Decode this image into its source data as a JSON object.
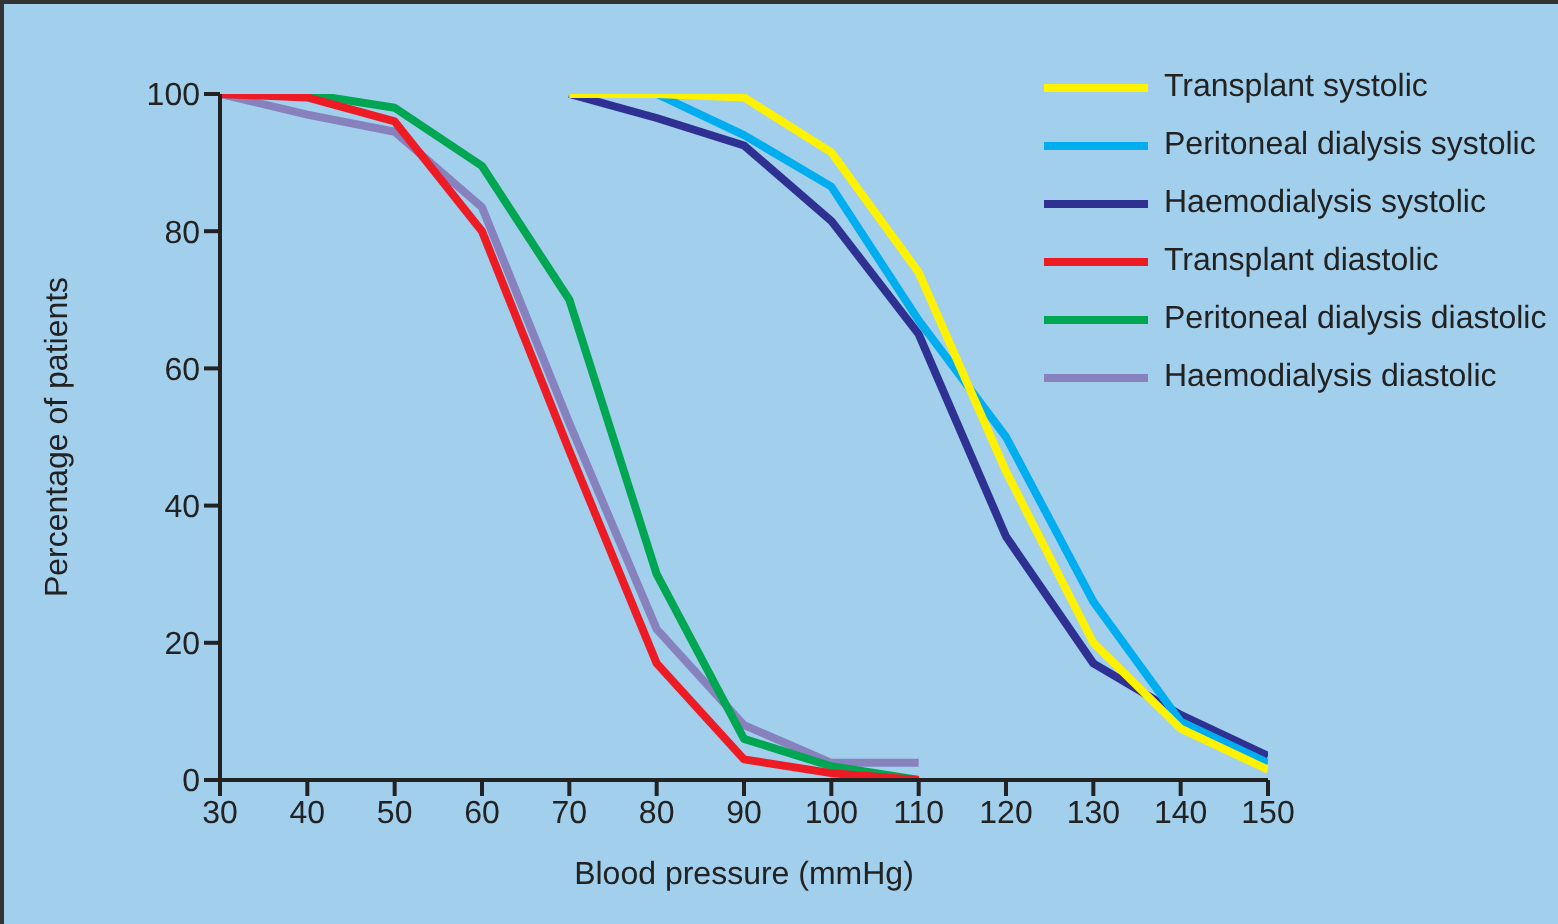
{
  "chart_data": {
    "type": "line",
    "xlabel": "Blood pressure (mmHg)",
    "ylabel": "Percentage of patients",
    "xlim": [
      30,
      150
    ],
    "xticks": [
      30,
      40,
      50,
      60,
      70,
      80,
      90,
      100,
      110,
      120,
      130,
      140,
      150
    ],
    "ylim": [
      0,
      100
    ],
    "yticks": [
      0,
      20,
      40,
      60,
      80,
      100
    ],
    "grid": false,
    "legend": "top right",
    "marker": "none",
    "line_style": "solid",
    "series": [
      {
        "name": "Transplant systolic",
        "color": "#fff200",
        "x": [
          70,
          80,
          90,
          100,
          110,
          120,
          130,
          140,
          150
        ],
        "values": [
          100,
          100,
          99.5,
          91.5,
          74,
          45,
          20,
          7.5,
          1.5
        ]
      },
      {
        "name": "Peritoneal dialysis systolic",
        "color": "#00aeef",
        "x": [
          70,
          80,
          90,
          100,
          110,
          120,
          130,
          140,
          150
        ],
        "values": [
          100,
          100,
          94,
          86.5,
          67,
          50,
          26,
          8.5,
          2.5
        ]
      },
      {
        "name": "Haemodialysis systolic",
        "color": "#2e3192",
        "x": [
          70,
          80,
          90,
          100,
          110,
          120,
          130,
          140,
          150
        ],
        "values": [
          100,
          96.5,
          92.5,
          81.5,
          65,
          35.5,
          17,
          9.5,
          3.5
        ]
      },
      {
        "name": "Transplant diastolic",
        "color": "#ed1c24",
        "x": [
          30,
          40,
          50,
          60,
          70,
          80,
          90,
          100,
          110
        ],
        "values": [
          100,
          99.5,
          96,
          80,
          48,
          17,
          3,
          1,
          0
        ]
      },
      {
        "name": "Peritoneal dialysis diastolic",
        "color": "#00a651",
        "x": [
          30,
          40,
          50,
          60,
          70,
          80,
          90,
          100,
          110
        ],
        "values": [
          100,
          100,
          98,
          89.5,
          70,
          30,
          6,
          2,
          0
        ]
      },
      {
        "name": "Haemodialysis diastolic",
        "color": "#8781bd",
        "x": [
          30,
          40,
          50,
          60,
          70,
          80,
          90,
          100,
          110
        ],
        "values": [
          100,
          97,
          94.5,
          83.5,
          52,
          22,
          8,
          2.5,
          2.5
        ]
      }
    ]
  }
}
